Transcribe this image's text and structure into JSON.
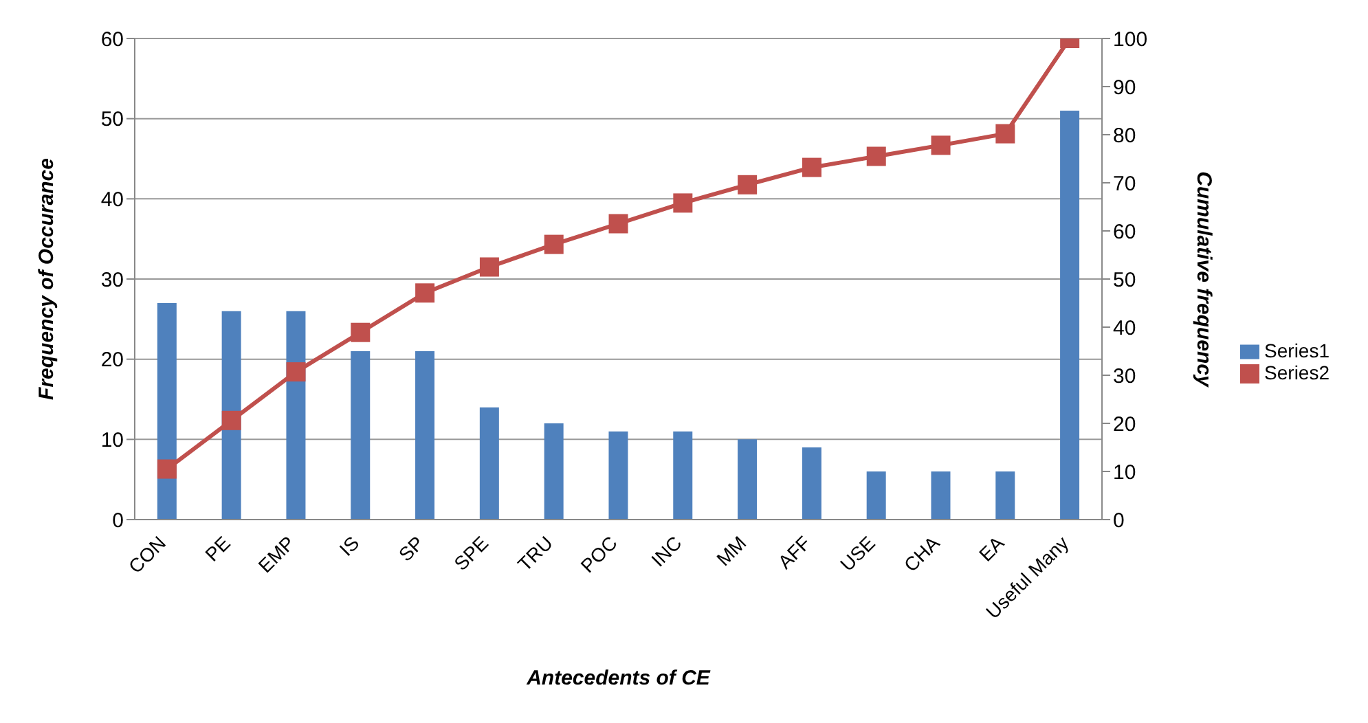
{
  "chart_data": {
    "type": "bar",
    "xlabel": "Antecedents  of CE",
    "ylabel": "Frequency  of Occurance",
    "y2label": "Cumulative frequency",
    "categories": [
      "CON",
      "PE",
      "EMP",
      "IS",
      "SP",
      "SPE",
      "TRU",
      "POC",
      "INC",
      "MM",
      "AFF",
      "USE",
      "CHA",
      "EA",
      "Useful Many"
    ],
    "series": [
      {
        "name": "Series1",
        "color": "#4f81bd",
        "values": [
          27,
          26,
          26,
          21,
          21,
          14,
          12,
          11,
          11,
          10,
          9,
          6,
          6,
          6,
          51
        ]
      },
      {
        "name": "Series2",
        "type": "line",
        "axis": "y2",
        "color": "#c0504d",
        "marker": "square",
        "values": [
          10.5,
          20.6,
          30.7,
          38.9,
          47.1,
          52.5,
          57.2,
          61.5,
          65.8,
          69.6,
          73.2,
          75.5,
          77.8,
          80.2,
          100
        ]
      }
    ],
    "ylim": [
      0,
      60
    ],
    "yticks": [
      0,
      10,
      20,
      30,
      40,
      50,
      60
    ],
    "y2lim": [
      0,
      100
    ],
    "y2ticks": [
      0,
      10,
      20,
      30,
      40,
      50,
      60,
      70,
      80,
      90,
      100
    ],
    "grid": "y",
    "legend": "right"
  }
}
